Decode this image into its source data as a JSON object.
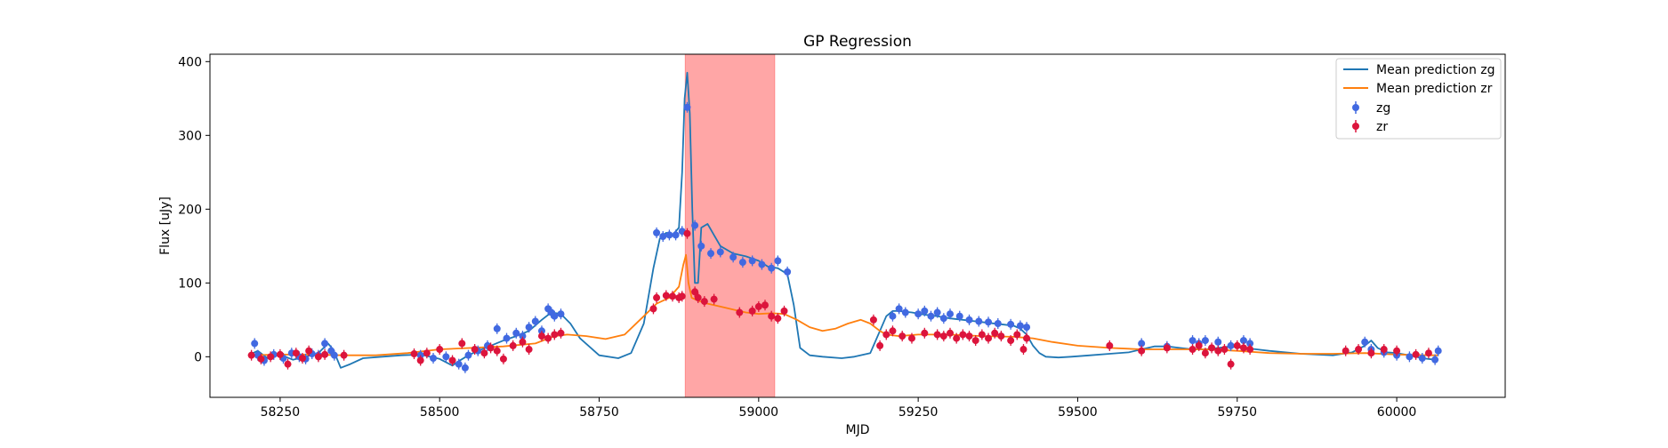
{
  "chart_data": {
    "type": "scatter",
    "title": "GP Regression",
    "xlabel": "MJD",
    "ylabel": "Flux [uJy]",
    "xlim": [
      58140,
      60170
    ],
    "ylim": [
      -55,
      410
    ],
    "xticks": [
      58250,
      58500,
      58750,
      59000,
      59250,
      59500,
      59750,
      60000
    ],
    "yticks": [
      0,
      100,
      200,
      300,
      400
    ],
    "grid": false,
    "legend": "top-right",
    "legend_entries": [
      "Mean prediction zg",
      "Mean prediction zr",
      "zg",
      "zr"
    ],
    "shaded_region": {
      "x_start": 58885,
      "x_end": 59025,
      "color": "#ffa6a6"
    },
    "colors": {
      "zg_line": "#1f77b4",
      "zr_line": "#ff7f0e",
      "zg_points": "#4169e1",
      "zr_points": "#dc143c"
    },
    "series": [
      {
        "name": "Mean prediction zg",
        "kind": "line",
        "x": [
          58200,
          58215,
          58230,
          58250,
          58270,
          58290,
          58310,
          58325,
          58333,
          58345,
          58360,
          58380,
          58410,
          58440,
          58470,
          58500,
          58520,
          58530,
          58545,
          58560,
          58580,
          58600,
          58620,
          58640,
          58660,
          58675,
          58690,
          58705,
          58720,
          58750,
          58780,
          58800,
          58820,
          58835,
          58845,
          58855,
          58865,
          58875,
          58880,
          58884,
          58888,
          58892,
          58896,
          58900,
          58905,
          58910,
          58920,
          58930,
          58940,
          58960,
          58980,
          59000,
          59015,
          59030,
          59045,
          59055,
          59065,
          59080,
          59100,
          59130,
          59150,
          59175,
          59190,
          59200,
          59210,
          59220,
          59240,
          59260,
          59280,
          59300,
          59320,
          59340,
          59360,
          59380,
          59400,
          59410,
          59420,
          59430,
          59440,
          59450,
          59470,
          59490,
          59520,
          59550,
          59580,
          59600,
          59620,
          59640,
          59660,
          59680,
          59700,
          59720,
          59740,
          59760,
          59780,
          59800,
          59850,
          59900,
          59930,
          59950,
          59960,
          59970,
          59985,
          60000,
          60020,
          60040,
          60060,
          60065
        ],
        "y": [
          2,
          8,
          -2,
          3,
          -4,
          0,
          5,
          18,
          10,
          -15,
          -10,
          -2,
          0,
          2,
          3,
          -3,
          -12,
          -6,
          2,
          8,
          15,
          22,
          28,
          35,
          50,
          60,
          58,
          45,
          25,
          2,
          -2,
          5,
          45,
          120,
          160,
          168,
          165,
          175,
          250,
          350,
          385,
          330,
          200,
          100,
          100,
          175,
          180,
          165,
          150,
          140,
          136,
          130,
          122,
          120,
          112,
          70,
          12,
          2,
          0,
          -2,
          0,
          5,
          35,
          55,
          62,
          62,
          60,
          57,
          55,
          52,
          50,
          48,
          46,
          44,
          42,
          38,
          30,
          15,
          5,
          0,
          -1,
          0,
          2,
          4,
          6,
          10,
          14,
          14,
          12,
          10,
          10,
          12,
          14,
          12,
          10,
          8,
          4,
          2,
          6,
          15,
          22,
          12,
          6,
          5,
          2,
          -2,
          -4,
          -4
        ]
      },
      {
        "name": "Mean prediction zr",
        "kind": "line",
        "x": [
          58200,
          58250,
          58300,
          58350,
          58400,
          58450,
          58500,
          58550,
          58600,
          58650,
          58680,
          58700,
          58730,
          58760,
          58790,
          58820,
          58840,
          58860,
          58875,
          58882,
          58886,
          58890,
          58895,
          58905,
          58920,
          58940,
          58960,
          58980,
          59000,
          59020,
          59040,
          59060,
          59080,
          59100,
          59120,
          59140,
          59160,
          59175,
          59190,
          59200,
          59220,
          59250,
          59300,
          59350,
          59400,
          59430,
          59460,
          59500,
          59550,
          59600,
          59650,
          59700,
          59750,
          59800,
          59850,
          59900,
          59950,
          60000,
          60050,
          60065
        ],
        "y": [
          2,
          3,
          3,
          2,
          2,
          5,
          10,
          12,
          14,
          18,
          28,
          30,
          28,
          24,
          30,
          55,
          72,
          80,
          95,
          125,
          138,
          100,
          80,
          76,
          72,
          68,
          64,
          60,
          58,
          59,
          58,
          50,
          40,
          35,
          38,
          45,
          50,
          45,
          35,
          30,
          28,
          30,
          30,
          28,
          27,
          25,
          20,
          15,
          12,
          10,
          10,
          10,
          8,
          5,
          4,
          4,
          5,
          3,
          2,
          2
        ]
      },
      {
        "name": "zg",
        "kind": "points",
        "x": [
          58210,
          58215,
          58225,
          58240,
          58255,
          58268,
          58280,
          58290,
          58300,
          58310,
          58320,
          58330,
          58335,
          58470,
          58490,
          58510,
          58530,
          58540,
          58545,
          58560,
          58575,
          58590,
          58605,
          58620,
          58630,
          58640,
          58650,
          58660,
          58670,
          58675,
          58680,
          58690,
          58840,
          58850,
          58860,
          58870,
          58880,
          58888,
          58900,
          58910,
          58925,
          58940,
          58960,
          58975,
          58990,
          59005,
          59020,
          59030,
          59045,
          59210,
          59220,
          59230,
          59250,
          59260,
          59270,
          59280,
          59290,
          59300,
          59315,
          59330,
          59345,
          59360,
          59375,
          59395,
          59410,
          59420,
          59600,
          59640,
          59680,
          59690,
          59700,
          59720,
          59740,
          59760,
          59770,
          59950,
          59960,
          59980,
          60000,
          60020,
          60040,
          60060,
          60065
        ],
        "y": [
          18,
          2,
          -5,
          3,
          -2,
          5,
          0,
          -3,
          4,
          2,
          18,
          8,
          2,
          2,
          -2,
          0,
          -10,
          -15,
          2,
          8,
          15,
          38,
          25,
          32,
          28,
          40,
          48,
          35,
          65,
          60,
          55,
          58,
          168,
          163,
          165,
          165,
          170,
          338,
          178,
          150,
          140,
          142,
          135,
          128,
          130,
          125,
          120,
          130,
          115,
          55,
          65,
          60,
          58,
          62,
          55,
          60,
          52,
          58,
          55,
          50,
          48,
          47,
          45,
          44,
          42,
          40,
          18,
          14,
          22,
          18,
          22,
          20,
          15,
          22,
          18,
          20,
          10,
          6,
          2,
          0,
          -2,
          -4,
          8
        ]
      },
      {
        "name": "zr",
        "kind": "points",
        "x": [
          58205,
          58220,
          58235,
          58250,
          58262,
          58275,
          58285,
          58295,
          58310,
          58320,
          58350,
          58460,
          58470,
          58480,
          58500,
          58520,
          58535,
          58555,
          58570,
          58580,
          58590,
          58600,
          58615,
          58630,
          58640,
          58660,
          58670,
          58680,
          58690,
          58835,
          58840,
          58855,
          58865,
          58875,
          58880,
          58888,
          58900,
          58905,
          58915,
          58930,
          58970,
          58990,
          59000,
          59010,
          59020,
          59030,
          59040,
          59180,
          59190,
          59200,
          59210,
          59225,
          59240,
          59260,
          59280,
          59290,
          59300,
          59310,
          59320,
          59330,
          59340,
          59350,
          59360,
          59370,
          59380,
          59395,
          59405,
          59415,
          59420,
          59550,
          59600,
          59640,
          59680,
          59690,
          59700,
          59710,
          59720,
          59730,
          59740,
          59750,
          59760,
          59770,
          59920,
          59940,
          59960,
          59980,
          60000,
          60030,
          60050
        ],
        "y": [
          2,
          -3,
          0,
          3,
          -10,
          5,
          -2,
          8,
          0,
          3,
          2,
          4,
          -5,
          5,
          10,
          -5,
          18,
          10,
          5,
          12,
          8,
          -3,
          15,
          20,
          10,
          28,
          25,
          30,
          32,
          65,
          80,
          83,
          82,
          80,
          82,
          167,
          88,
          80,
          75,
          78,
          60,
          62,
          68,
          70,
          55,
          52,
          62,
          50,
          15,
          30,
          35,
          28,
          25,
          32,
          30,
          28,
          32,
          25,
          30,
          28,
          22,
          30,
          25,
          32,
          28,
          22,
          30,
          10,
          25,
          15,
          8,
          12,
          10,
          15,
          5,
          12,
          8,
          10,
          -10,
          15,
          12,
          10,
          8,
          10,
          5,
          10,
          8,
          3,
          5
        ]
      }
    ]
  }
}
